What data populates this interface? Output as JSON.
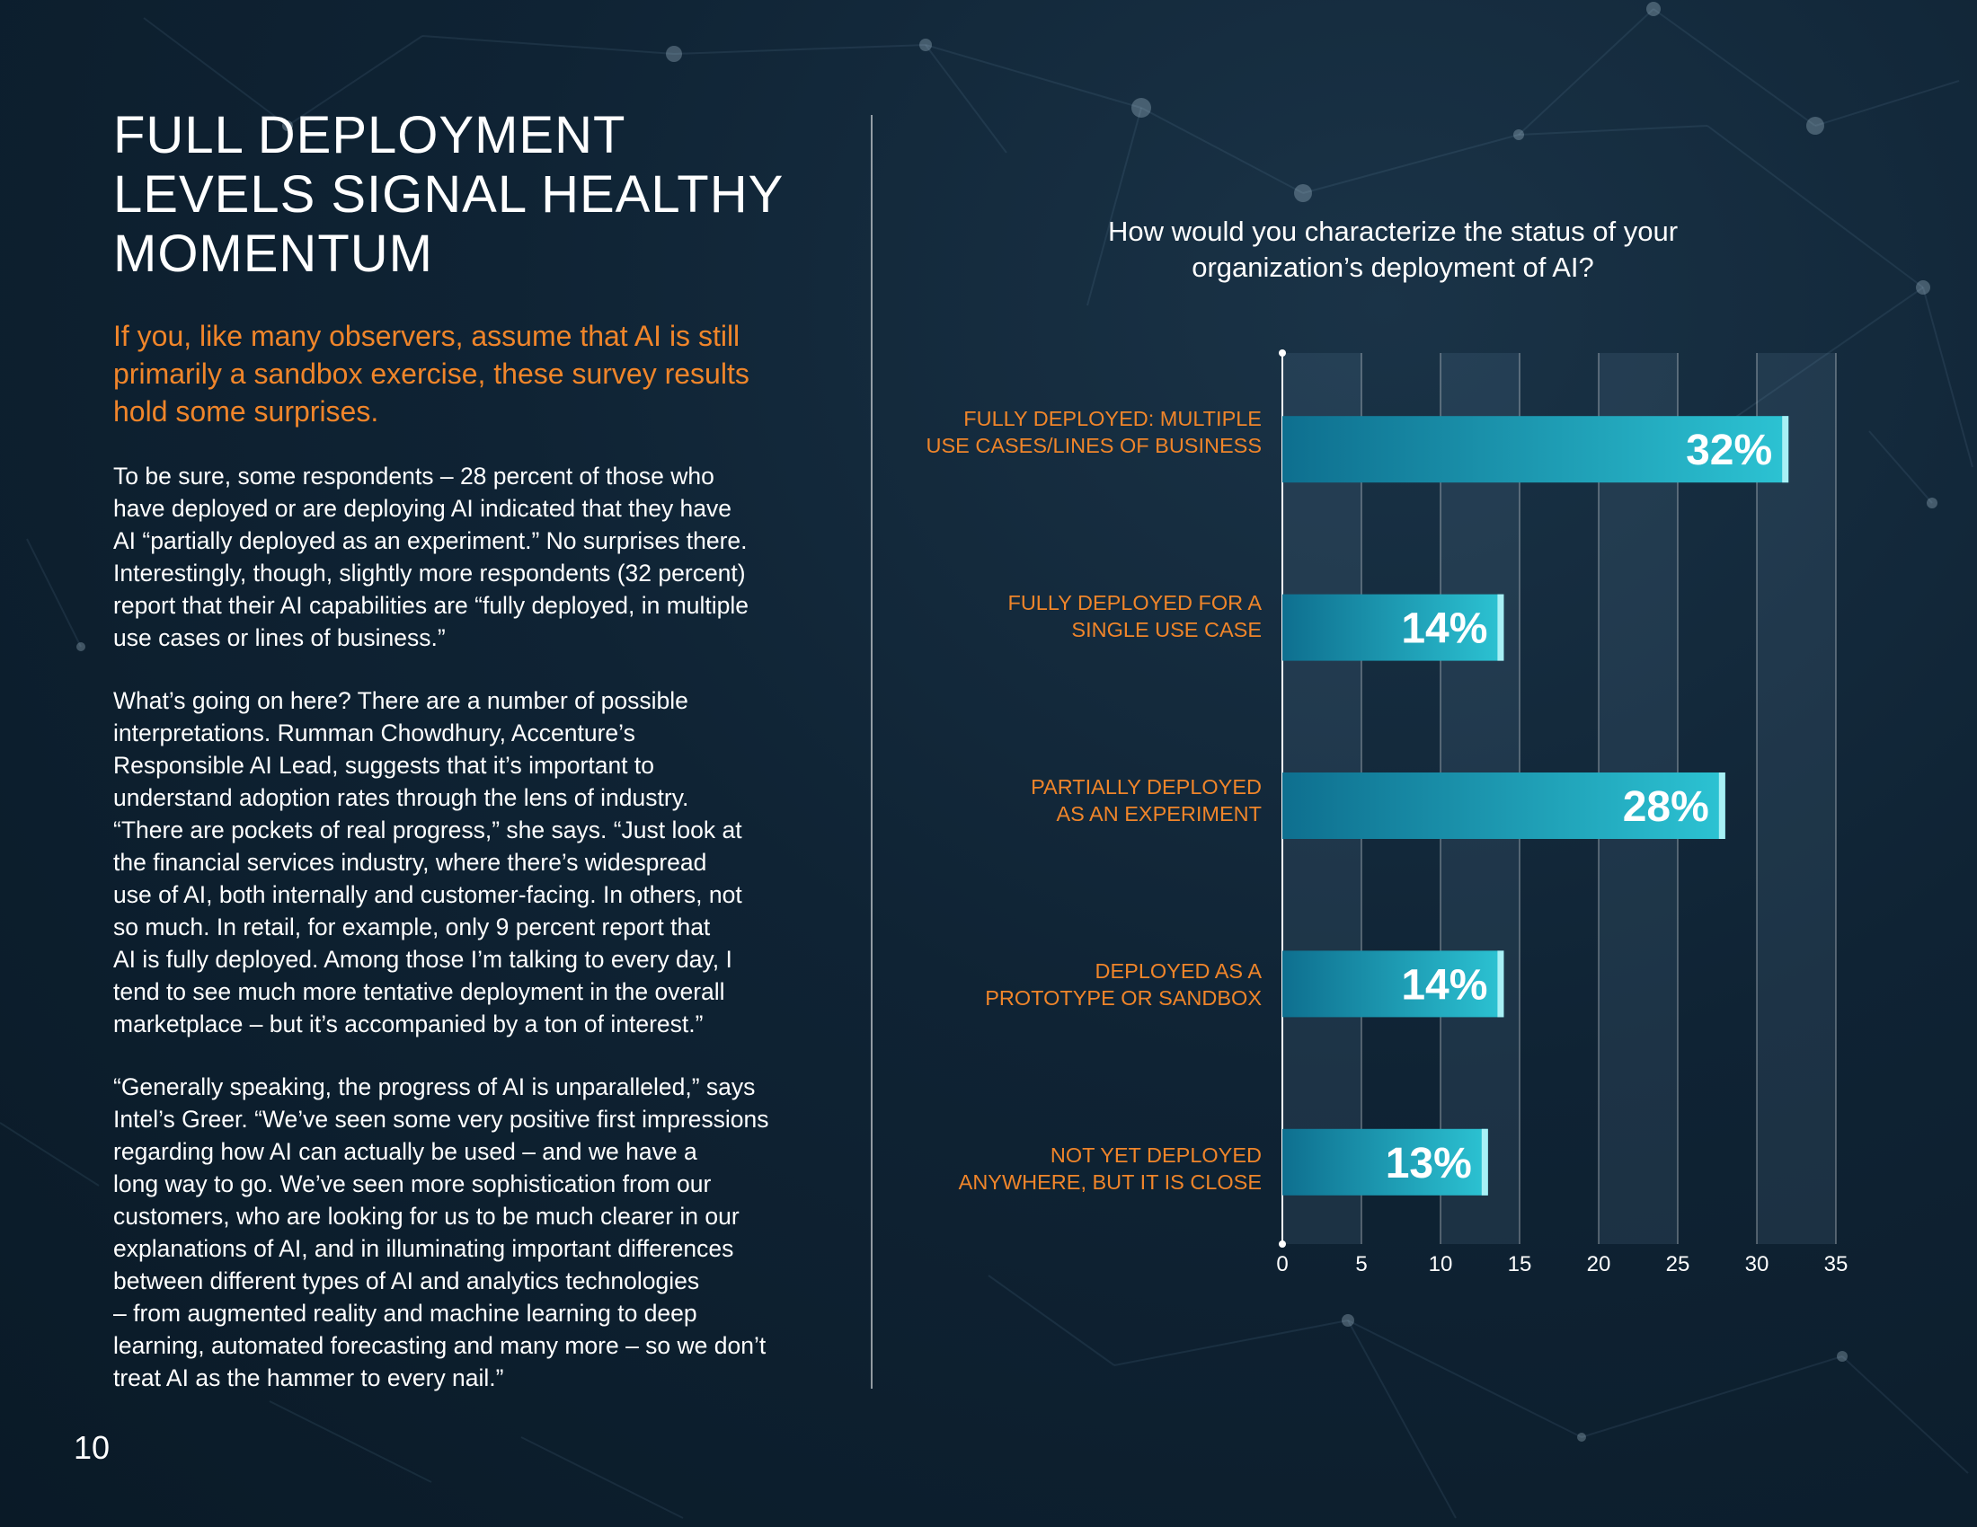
{
  "page": {
    "title_lines": [
      "FULL DEPLOYMENT",
      "LEVELS SIGNAL HEALTHY",
      "MOMENTUM"
    ],
    "lead_lines": [
      "If you, like many observers, assume that AI is still",
      "primarily a sandbox exercise, these survey results",
      "hold some surprises."
    ],
    "paragraphs": [
      [
        "To be sure, some respondents – 28 percent of those who",
        "have deployed or are deploying AI indicated that they have",
        "AI “partially deployed as an experiment.” No surprises there.",
        "Interestingly, though, slightly more respondents (32 percent)",
        "report that their AI capabilities are “fully deployed, in multiple",
        "use cases or lines of business.”"
      ],
      [
        "What’s going on here? There are a number of possible",
        "interpretations. Rumman Chowdhury, Accenture’s",
        "Responsible AI Lead, suggests that it’s important to",
        "understand adoption rates through the lens of industry.",
        "“There are pockets of real progress,” she says. “Just look at",
        "the financial services industry, where there’s widespread",
        "use of AI, both internally and customer-facing. In others, not",
        "so much. In retail, for example, only 9 percent report that",
        "AI is fully deployed. Among those I’m talking to every day, I",
        "tend to see much more tentative deployment in the overall",
        "marketplace – but it’s accompanied by a ton of interest.”"
      ],
      [
        "“Generally speaking, the progress of AI is unparalleled,” says",
        "Intel’s Greer. “We’ve seen some very positive first impressions",
        "regarding how AI can actually be used – and we have a",
        "long way to go. We’ve seen more sophistication from our",
        "customers, who are looking for us to be much clearer in our",
        "explanations of AI, and in illuminating important differences",
        "between different types of AI and analytics technologies",
        "– from augmented reality and machine learning to deep",
        "learning, automated forecasting and many more – so we don’t",
        "treat AI as the hammer to every nail.”"
      ]
    ],
    "page_number": "10"
  },
  "colors": {
    "accent_orange": "#f0852a",
    "bar_dark": "#0e6f8f",
    "bar_light": "#2cc3d3",
    "bar_cap": "#a8f0f5"
  },
  "chart_data": {
    "type": "bar",
    "orientation": "horizontal",
    "title_lines": [
      "How would you characterize the status of your",
      "organization’s deployment of AI?"
    ],
    "categories": [
      [
        "FULLY DEPLOYED: MULTIPLE",
        "USE CASES/LINES OF BUSINESS"
      ],
      [
        "FULLY DEPLOYED FOR A",
        "SINGLE USE CASE"
      ],
      [
        "PARTIALLY DEPLOYED",
        "AS AN EXPERIMENT"
      ],
      [
        "DEPLOYED AS A",
        "PROTOTYPE OR SANDBOX"
      ],
      [
        "NOT YET DEPLOYED",
        "ANYWHERE, BUT IT IS CLOSE"
      ]
    ],
    "values": [
      32,
      14,
      28,
      14,
      13
    ],
    "data_labels": [
      "32%",
      "14%",
      "28%",
      "14%",
      "13%"
    ],
    "xlim": [
      0,
      35
    ],
    "xticks": [
      "0",
      "5",
      "10",
      "15",
      "20",
      "25",
      "30",
      "35"
    ],
    "xlabel": "",
    "ylabel": "",
    "grid": true
  }
}
